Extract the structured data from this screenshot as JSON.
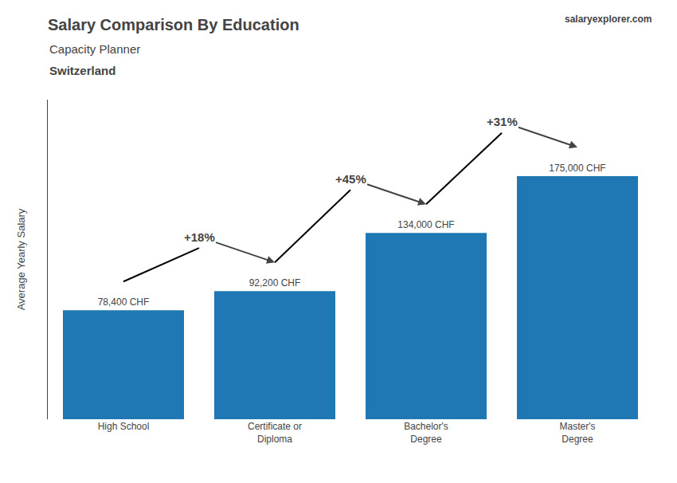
{
  "chart_data": {
    "type": "bar",
    "title": "Salary Comparison By Education",
    "subtitle": [
      "Capacity Planner",
      "Switzerland"
    ],
    "ylabel": "Average Yearly Salary",
    "categories": [
      "High School",
      "Certificate or\nDiploma",
      "Bachelor's\nDegree",
      "Master's\nDegree"
    ],
    "values": [
      78400,
      92200,
      134000,
      175000
    ],
    "value_labels": [
      "78,400 CHF",
      "92,200 CHF",
      "134,000 CHF",
      "175,000 CHF"
    ],
    "data_labels": true,
    "annotations": [
      "+18%",
      "+45%",
      "+31%",
      "salaryexplorer.com"
    ],
    "ylim": [
      0,
      230000
    ],
    "tick_labels": "x",
    "grid": false
  }
}
